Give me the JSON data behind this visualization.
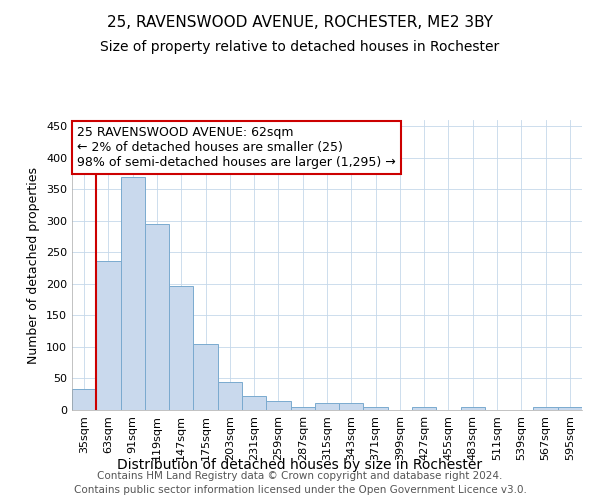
{
  "title": "25, RAVENSWOOD AVENUE, ROCHESTER, ME2 3BY",
  "subtitle": "Size of property relative to detached houses in Rochester",
  "xlabel": "Distribution of detached houses by size in Rochester",
  "ylabel": "Number of detached properties",
  "categories": [
    "35sqm",
    "63sqm",
    "91sqm",
    "119sqm",
    "147sqm",
    "175sqm",
    "203sqm",
    "231sqm",
    "259sqm",
    "287sqm",
    "315sqm",
    "343sqm",
    "371sqm",
    "399sqm",
    "427sqm",
    "455sqm",
    "483sqm",
    "511sqm",
    "539sqm",
    "567sqm",
    "595sqm"
  ],
  "values": [
    33,
    237,
    370,
    295,
    197,
    104,
    45,
    22,
    14,
    5,
    11,
    11,
    5,
    0,
    4,
    0,
    4,
    0,
    0,
    4,
    4
  ],
  "bar_color": "#c9d9ed",
  "bar_edge_color": "#7aaacf",
  "grid_color": "#c5d8ea",
  "bg_color": "#ffffff",
  "vline_x_idx": 1,
  "vline_color": "#cc0000",
  "annotation_text": "25 RAVENSWOOD AVENUE: 62sqm\n← 2% of detached houses are smaller (25)\n98% of semi-detached houses are larger (1,295) →",
  "annotation_box_color": "#ffffff",
  "annotation_box_edge": "#cc0000",
  "ylim": [
    0,
    460
  ],
  "yticks": [
    0,
    50,
    100,
    150,
    200,
    250,
    300,
    350,
    400,
    450
  ],
  "footnote": "Contains HM Land Registry data © Crown copyright and database right 2024.\nContains public sector information licensed under the Open Government Licence v3.0.",
  "title_fontsize": 11,
  "subtitle_fontsize": 10,
  "xlabel_fontsize": 10,
  "ylabel_fontsize": 9,
  "tick_fontsize": 8,
  "annotation_fontsize": 9,
  "footnote_fontsize": 7.5
}
